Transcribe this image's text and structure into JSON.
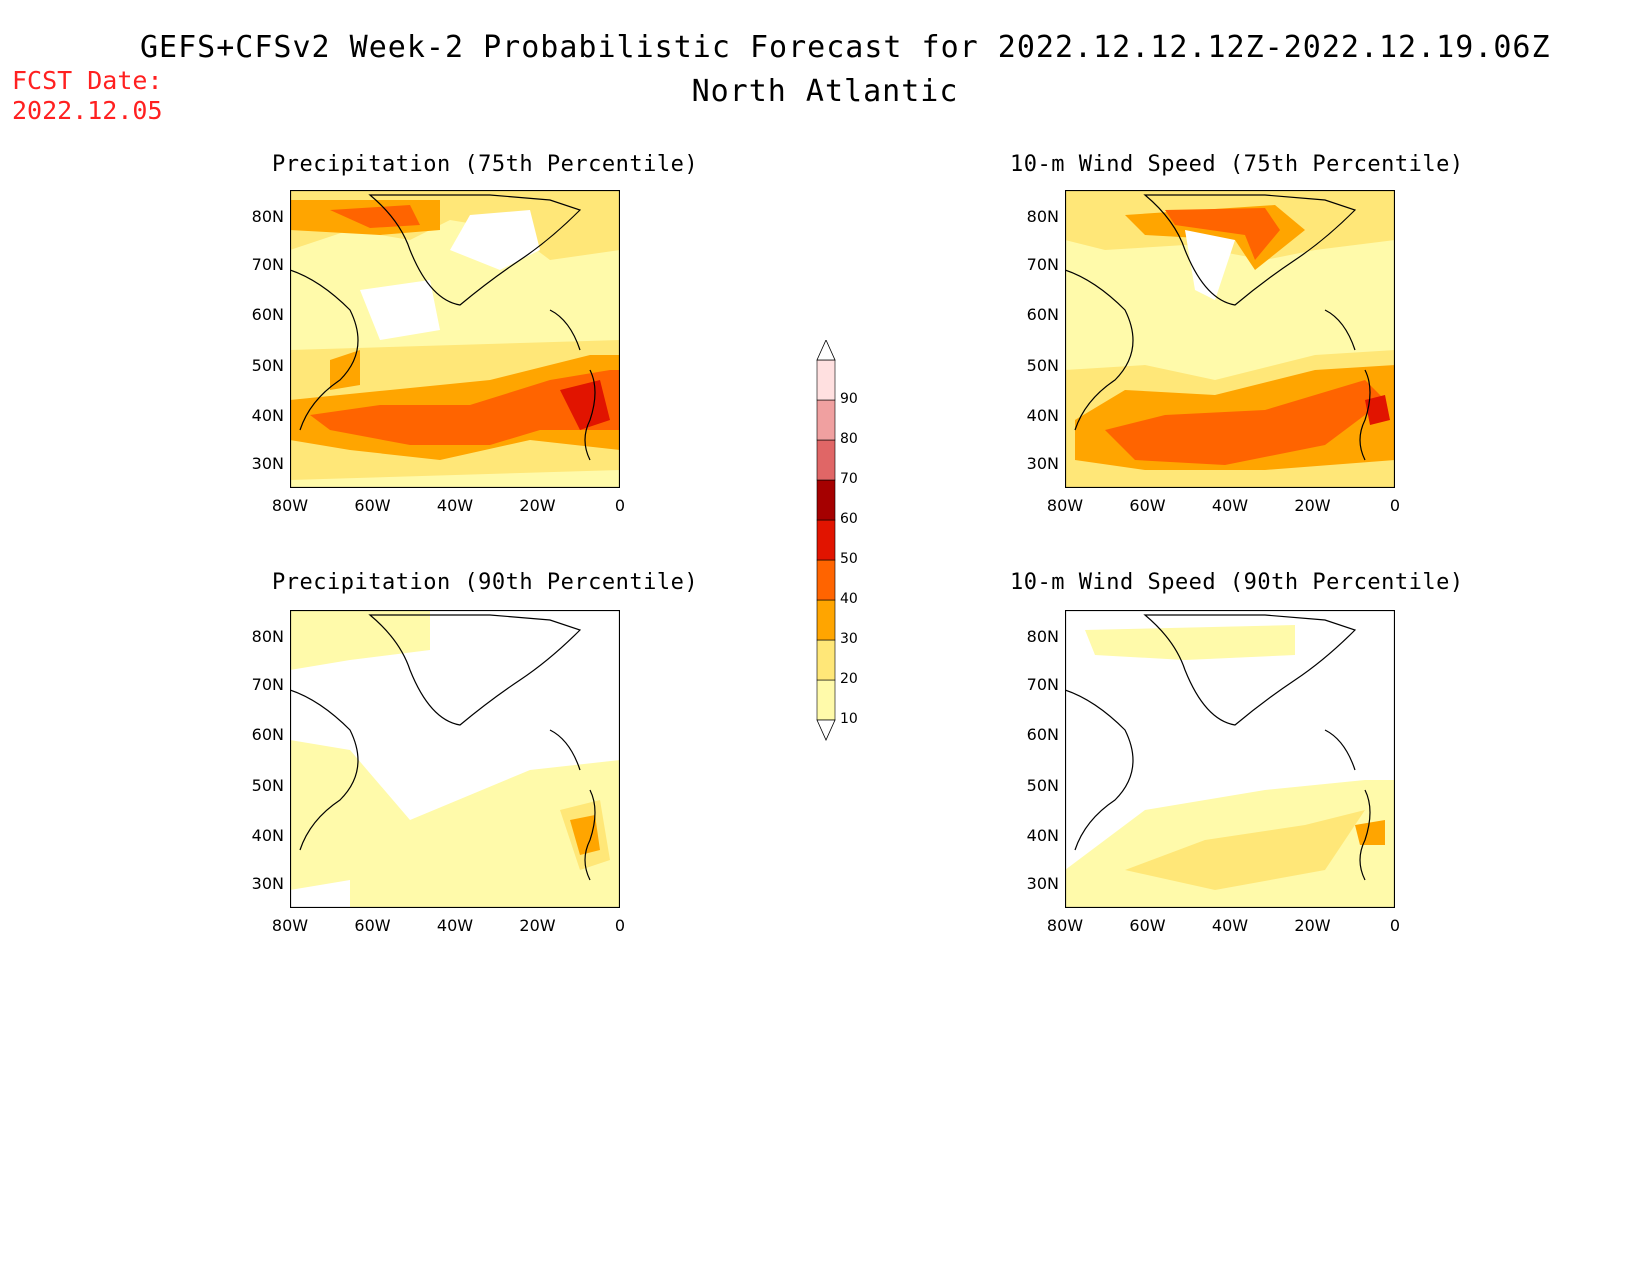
{
  "header": {
    "main_title": "GEFS+CFSv2 Week-2 Probabilistic Forecast for 2022.12.12.12Z-2022.12.19.06Z",
    "sub_title": "North Atlantic",
    "fcst_label": "FCST Date:",
    "fcst_date": "2022.12.05"
  },
  "panels": [
    {
      "title": "Precipitation (75th Percentile)",
      "variable": "precipitation",
      "percentile": 75
    },
    {
      "title": "10-m Wind Speed (75th Percentile)",
      "variable": "wind_speed_10m",
      "percentile": 75
    },
    {
      "title": "Precipitation (90th Percentile)",
      "variable": "precipitation",
      "percentile": 90
    },
    {
      "title": "10-m Wind Speed (90th Percentile)",
      "variable": "wind_speed_10m",
      "percentile": 90
    }
  ],
  "axes": {
    "lat_ticks": [
      "80N",
      "70N",
      "60N",
      "50N",
      "40N",
      "30N"
    ],
    "lon_ticks": [
      "80W",
      "60W",
      "40W",
      "20W",
      "0"
    ]
  },
  "colorbar": {
    "levels": [
      "10",
      "20",
      "30",
      "40",
      "50",
      "60",
      "70",
      "80",
      "90"
    ],
    "colors": [
      "#fffaaa",
      "#ffe778",
      "#ffa500",
      "#ff6400",
      "#e11400",
      "#a50000",
      "#e06666",
      "#f0a0a0",
      "#ffe0e0"
    ]
  },
  "map_region": {
    "lon_range": [
      "80W",
      "0"
    ],
    "lat_range": [
      "25N",
      "85N"
    ]
  }
}
